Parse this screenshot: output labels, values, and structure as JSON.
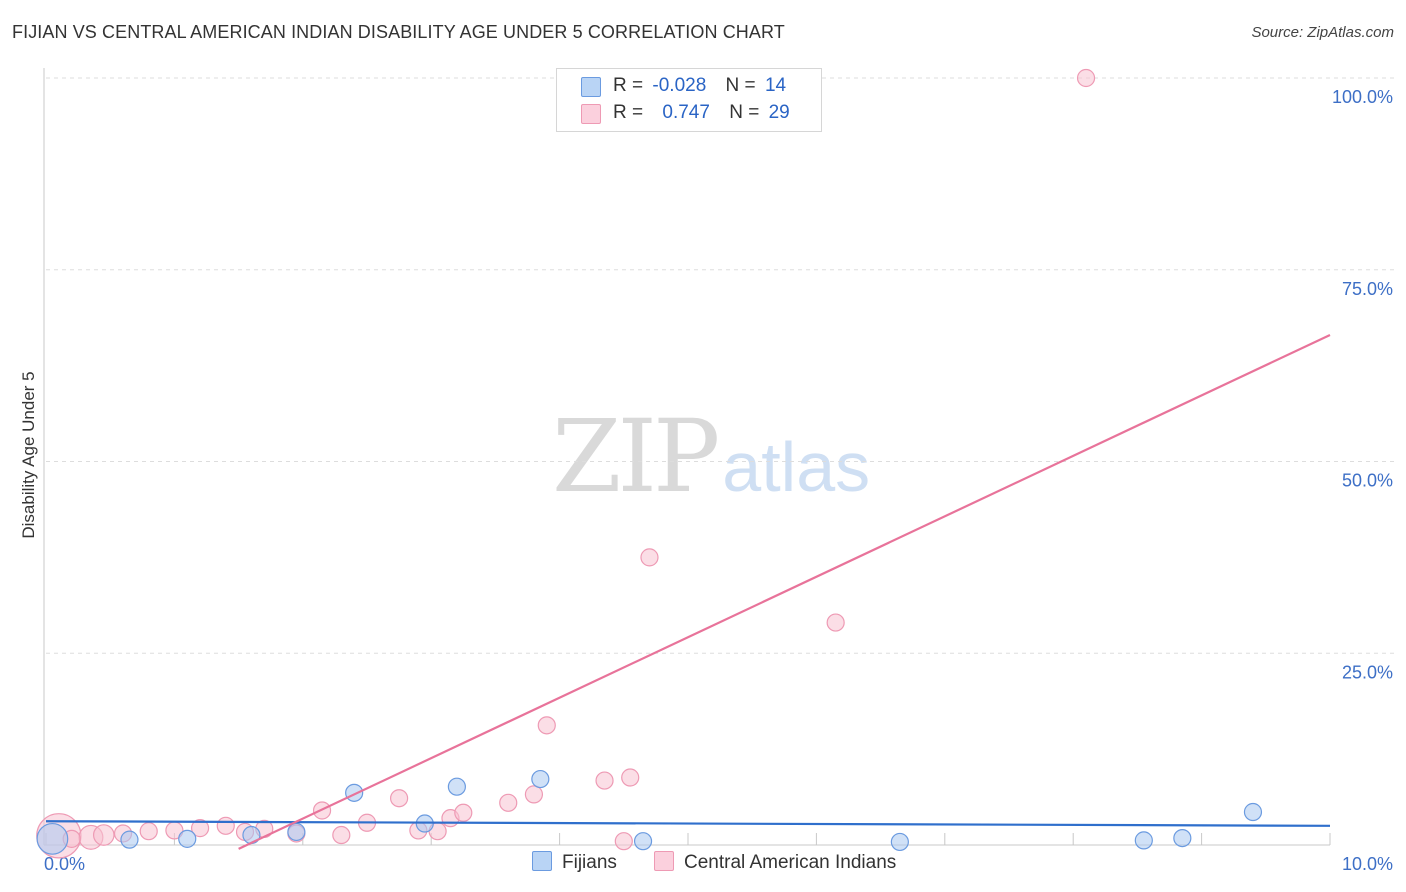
{
  "title": "FIJIAN VS CENTRAL AMERICAN INDIAN DISABILITY AGE UNDER 5 CORRELATION CHART",
  "source": "Source: ZipAtlas.com",
  "watermark": {
    "zip": "ZIP",
    "atlas": "atlas"
  },
  "legend": {
    "fijians": {
      "r_label": "R =",
      "r_value": "-0.028",
      "n_label": "N =",
      "n_value": "14"
    },
    "cai": {
      "r_label": "R =",
      "r_value": "0.747",
      "n_label": "N =",
      "n_value": "29"
    }
  },
  "bottom_legend": {
    "fijians": "Fijians",
    "cai": "Central American Indians"
  },
  "colors": {
    "fijians_fill": "#a9c8f0",
    "fijians_stroke": "#6b9be0",
    "fijians_line": "#2f6fcc",
    "cai_fill": "#f8c2d2",
    "cai_stroke": "#ee9ab4",
    "cai_line": "#e8739a",
    "tick": "#3d6fc6",
    "grid": "#dddddd"
  },
  "chart_data": {
    "type": "scatter",
    "title": "FIJIAN VS CENTRAL AMERICAN INDIAN DISABILITY AGE UNDER 5 CORRELATION CHART",
    "xlabel": "",
    "ylabel": "Disability Age Under 5",
    "xlim": [
      0,
      10
    ],
    "ylim": [
      0,
      100
    ],
    "x_tick_labels": [
      {
        "value": 0,
        "label": "0.0%"
      },
      {
        "value": 10,
        "label": "10.0%"
      }
    ],
    "y_tick_labels": [
      {
        "value": 25,
        "label": "25.0%"
      },
      {
        "value": 50,
        "label": "50.0%"
      },
      {
        "value": 75,
        "label": "75.0%"
      },
      {
        "value": 100,
        "label": "100.0%"
      }
    ],
    "series": [
      {
        "name": "Fijians",
        "points": [
          {
            "x": 0.05,
            "y": 0.8,
            "s": 1.8
          },
          {
            "x": 0.65,
            "y": 0.7,
            "s": 1
          },
          {
            "x": 1.1,
            "y": 0.8,
            "s": 1
          },
          {
            "x": 1.6,
            "y": 1.3,
            "s": 1
          },
          {
            "x": 1.95,
            "y": 1.7,
            "s": 1
          },
          {
            "x": 2.4,
            "y": 6.8,
            "s": 1
          },
          {
            "x": 2.95,
            "y": 2.8,
            "s": 1
          },
          {
            "x": 3.2,
            "y": 7.6,
            "s": 1
          },
          {
            "x": 3.85,
            "y": 8.6,
            "s": 1
          },
          {
            "x": 4.65,
            "y": 0.5,
            "s": 1
          },
          {
            "x": 6.65,
            "y": 0.4,
            "s": 1
          },
          {
            "x": 8.55,
            "y": 0.6,
            "s": 1
          },
          {
            "x": 8.85,
            "y": 0.9,
            "s": 1
          },
          {
            "x": 9.4,
            "y": 4.3,
            "s": 1
          }
        ],
        "trend": {
          "x1": 0,
          "y1": 3.1,
          "x2": 10,
          "y2": 2.5
        }
      },
      {
        "name": "Central American Indians",
        "points": [
          {
            "x": 0.1,
            "y": 1.2,
            "s": 2.6
          },
          {
            "x": 0.35,
            "y": 1.0,
            "s": 1.4
          },
          {
            "x": 0.45,
            "y": 1.3,
            "s": 1.2
          },
          {
            "x": 0.6,
            "y": 1.5,
            "s": 1
          },
          {
            "x": 0.8,
            "y": 1.8,
            "s": 1
          },
          {
            "x": 1.0,
            "y": 1.9,
            "s": 1
          },
          {
            "x": 1.2,
            "y": 2.2,
            "s": 1
          },
          {
            "x": 1.4,
            "y": 2.5,
            "s": 1
          },
          {
            "x": 1.55,
            "y": 1.7,
            "s": 1
          },
          {
            "x": 1.7,
            "y": 2.1,
            "s": 1
          },
          {
            "x": 1.95,
            "y": 1.5,
            "s": 1
          },
          {
            "x": 2.15,
            "y": 4.5,
            "s": 1
          },
          {
            "x": 2.3,
            "y": 1.3,
            "s": 1
          },
          {
            "x": 2.5,
            "y": 2.9,
            "s": 1
          },
          {
            "x": 2.75,
            "y": 6.1,
            "s": 1
          },
          {
            "x": 2.9,
            "y": 1.9,
            "s": 1
          },
          {
            "x": 3.05,
            "y": 1.8,
            "s": 1
          },
          {
            "x": 3.15,
            "y": 3.5,
            "s": 1
          },
          {
            "x": 3.25,
            "y": 4.2,
            "s": 1
          },
          {
            "x": 3.6,
            "y": 5.5,
            "s": 1
          },
          {
            "x": 3.8,
            "y": 6.6,
            "s": 1
          },
          {
            "x": 3.9,
            "y": 15.6,
            "s": 1
          },
          {
            "x": 4.35,
            "y": 8.4,
            "s": 1
          },
          {
            "x": 4.5,
            "y": 0.5,
            "s": 1
          },
          {
            "x": 4.55,
            "y": 8.8,
            "s": 1
          },
          {
            "x": 4.7,
            "y": 37.5,
            "s": 1
          },
          {
            "x": 6.15,
            "y": 29.0,
            "s": 1
          },
          {
            "x": 8.1,
            "y": 100.0,
            "s": 1
          },
          {
            "x": 0.2,
            "y": 0.8,
            "s": 1
          }
        ],
        "trend": {
          "x1": 1.5,
          "y1": -0.5,
          "x2": 10,
          "y2": 66.5
        }
      }
    ]
  }
}
